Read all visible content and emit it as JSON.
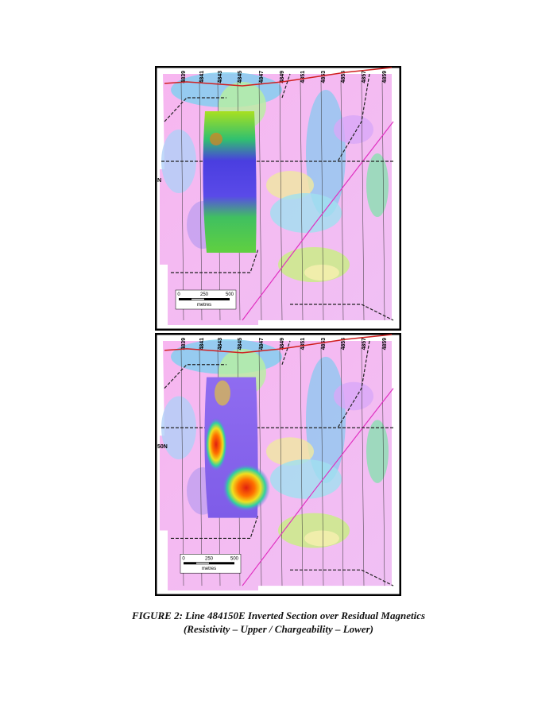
{
  "figures": [
    {
      "grid_labels": [
        "4839",
        "4841",
        "4843",
        "4845",
        "4847",
        "4849",
        "4851",
        "4853",
        "4855",
        "4857",
        "4859"
      ],
      "edge_label": "N",
      "scale": {
        "ticks": [
          "0",
          "250",
          "500"
        ],
        "unit": "metres"
      }
    },
    {
      "grid_labels": [
        "4839",
        "4841",
        "4843",
        "4845",
        "4847",
        "4849",
        "4851",
        "4853",
        "4855",
        "4857",
        "4859"
      ],
      "edge_label": "50N",
      "scale": {
        "ticks": [
          "0",
          "250",
          "500"
        ],
        "unit": "metres"
      }
    }
  ],
  "caption": {
    "line1": "FIGURE 2: Line 484150E Inverted Section over Residual Magnetics",
    "line2": "(Resistivity – Upper / Chargeability – Lower)"
  }
}
